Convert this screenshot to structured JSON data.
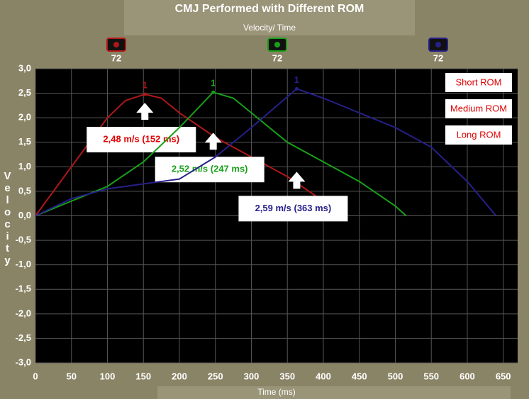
{
  "chart_data": {
    "type": "line",
    "title": "CMJ Performed with Different ROM",
    "subtitle": "Velocity/ Time",
    "x_label": "Time (ms)",
    "y_label": "Velocity",
    "header_markers": [
      "72",
      "72",
      "72"
    ],
    "peak_labels": [
      "1",
      "1",
      "1"
    ],
    "annotations": [
      "2,48 m/s (152 ms)",
      "2,52 m/s (247 ms)",
      "2,59 m/s (363 ms)"
    ],
    "legend_text_color": "#e00000",
    "legend_position": "top-right",
    "grid": true,
    "xlim": [
      0,
      670
    ],
    "ylim": [
      -3,
      3
    ],
    "xticks": [
      0,
      50,
      100,
      150,
      200,
      250,
      300,
      350,
      400,
      450,
      500,
      550,
      600,
      650
    ],
    "yticks": [
      {
        "value": 3,
        "label": "3,0"
      },
      {
        "value": 2.5,
        "label": "2,5"
      },
      {
        "value": 2,
        "label": "2,0"
      },
      {
        "value": 1.5,
        "label": "1,5"
      },
      {
        "value": 1,
        "label": "1,0"
      },
      {
        "value": 0.5,
        "label": "0,5"
      },
      {
        "value": 0,
        "label": "0,0"
      },
      {
        "value": -0.5,
        "label": "-0,5"
      },
      {
        "value": -1,
        "label": "-1,0"
      },
      {
        "value": -1.5,
        "label": "-1,5"
      },
      {
        "value": -2,
        "label": "-2,0"
      },
      {
        "value": -2.5,
        "label": "-2,5"
      },
      {
        "value": -3,
        "label": "-3,0"
      }
    ],
    "series": [
      {
        "name": "Short ROM",
        "color": "#b01818",
        "x": [
          0,
          25,
          50,
          75,
          100,
          125,
          152,
          175,
          200,
          250,
          300,
          350,
          400,
          430
        ],
        "values": [
          0,
          0.5,
          1.0,
          1.5,
          2.0,
          2.35,
          2.48,
          2.4,
          2.1,
          1.6,
          1.2,
          0.8,
          0.3,
          0
        ]
      },
      {
        "name": "Medium ROM",
        "color": "#18a018",
        "x": [
          0,
          50,
          100,
          150,
          200,
          247,
          275,
          300,
          350,
          400,
          450,
          500,
          515
        ],
        "values": [
          0,
          0.3,
          0.6,
          1.1,
          1.8,
          2.52,
          2.4,
          2.1,
          1.5,
          1.1,
          0.7,
          0.2,
          0
        ]
      },
      {
        "name": "Long ROM",
        "color": "#26208a",
        "x": [
          0,
          50,
          100,
          150,
          200,
          250,
          300,
          363,
          400,
          450,
          500,
          550,
          600,
          640
        ],
        "values": [
          0,
          0.35,
          0.55,
          0.65,
          0.75,
          1.2,
          1.8,
          2.59,
          2.4,
          2.1,
          1.8,
          1.4,
          0.7,
          0
        ]
      }
    ]
  }
}
